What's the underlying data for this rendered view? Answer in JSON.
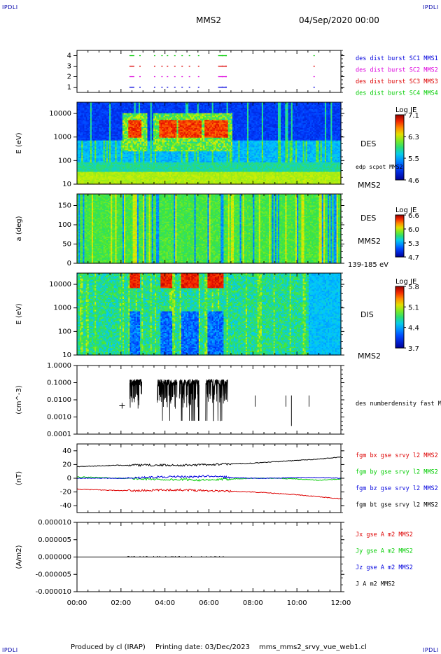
{
  "header": {
    "ipdli": "IPDLI",
    "title": "MMS2",
    "date": "04/Sep/2020 00:00"
  },
  "footer": {
    "produced_by": "Produced by cl (IRAP)",
    "printing_date": "Printing date: 03/Dec/2023",
    "script_name": "mms_mms2_srvy_vue_web1.cl"
  },
  "colors": {
    "red": "#dd0000",
    "green": "#00cc00",
    "blue": "#0000dd",
    "magenta": "#dd00dd",
    "black": "#000000"
  },
  "chart_data": [
    {
      "id": "burst",
      "type": "scatter",
      "ylabel": "",
      "yticks": [
        "1",
        "2",
        "3",
        "4"
      ],
      "ylim": [
        0.5,
        4.5
      ],
      "series": [
        {
          "name": "des dist burst SC1 MMS1",
          "color": "#0000dd",
          "y": 1,
          "x": [
            "02:23",
            "02:50",
            "03:30",
            "03:50",
            "04:05",
            "04:25",
            "04:45",
            "05:05",
            "05:30",
            "06:25",
            "06:35",
            "06:45",
            "10:45"
          ]
        },
        {
          "name": "des dist burst SC2 MMS2",
          "color": "#dd00dd",
          "y": 2,
          "x": [
            "02:23",
            "02:50",
            "03:30",
            "03:50",
            "04:05",
            "04:25",
            "04:45",
            "05:05",
            "05:30",
            "06:25",
            "06:35",
            "06:45",
            "10:45"
          ]
        },
        {
          "name": "des dist burst SC3 MMS3",
          "color": "#dd0000",
          "y": 3,
          "x": [
            "02:23",
            "02:50",
            "03:30",
            "03:50",
            "04:05",
            "04:25",
            "04:45",
            "05:05",
            "05:30",
            "06:25",
            "06:35",
            "06:45",
            "10:45"
          ]
        },
        {
          "name": "des dist burst SC4 MMS4",
          "color": "#00cc00",
          "y": 4,
          "x": [
            "02:23",
            "02:50",
            "03:30",
            "03:50",
            "04:05",
            "04:25",
            "04:45",
            "05:05",
            "05:30",
            "06:25",
            "06:35",
            "06:45",
            "10:45"
          ]
        }
      ]
    },
    {
      "id": "des_energy",
      "type": "heatmap",
      "ylabel": "E (eV)",
      "yscale": "log",
      "ylim": [
        10,
        30000
      ],
      "yticks": [
        "10",
        "100",
        "1000",
        "10000"
      ],
      "right_labels": [
        "DES",
        "MMS2",
        "edp scpot MMS2"
      ],
      "colorbar": {
        "title": "Log JE",
        "min": 4.6,
        "max": 7.1,
        "ticks": [
          "7.1",
          "6.3",
          "5.5",
          "4.6"
        ]
      },
      "hot_intervals_hours": [
        [
          2.3,
          2.9
        ],
        [
          3.7,
          4.5
        ],
        [
          4.6,
          5.6
        ],
        [
          5.8,
          6.8
        ]
      ]
    },
    {
      "id": "des_pitch",
      "type": "heatmap",
      "ylabel": "a (deg)",
      "ylim": [
        0,
        180
      ],
      "yticks": [
        "0",
        "50",
        "100",
        "150"
      ],
      "right_labels": [
        "DES",
        "MMS2",
        "139-185 eV"
      ],
      "colorbar": {
        "title": "Log JE",
        "min": 4.7,
        "max": 6.6,
        "ticks": [
          "6.6",
          "6.0",
          "5.3",
          "4.7"
        ]
      }
    },
    {
      "id": "dis_energy",
      "type": "heatmap",
      "ylabel": "E (eV)",
      "yscale": "log",
      "ylim": [
        10,
        30000
      ],
      "yticks": [
        "10",
        "100",
        "1000",
        "10000"
      ],
      "right_labels": [
        "DIS",
        "MMS2"
      ],
      "colorbar": {
        "title": "Log JE",
        "min": 3.7,
        "max": 5.8,
        "ticks": [
          "5.8",
          "5.1",
          "4.4",
          "3.7"
        ]
      },
      "hot_intervals_hours": [
        [
          2.4,
          2.8
        ],
        [
          3.8,
          4.3
        ],
        [
          4.7,
          5.5
        ],
        [
          5.9,
          6.6
        ]
      ]
    },
    {
      "id": "density",
      "type": "line",
      "ylabel": "(cm^-3)",
      "yscale": "log",
      "ylim": [
        0.0001,
        1.0
      ],
      "yticks": [
        "0.0001",
        "0.0010",
        "0.0100",
        "0.1000",
        "1.0000"
      ],
      "series": [
        {
          "name": "des numberdensity fast M",
          "color": "#000000"
        }
      ],
      "plus_marker": {
        "x_hours": 2.05,
        "y": 0.0045
      },
      "intervals_hours": [
        [
          2.4,
          2.95
        ],
        [
          3.65,
          4.55
        ],
        [
          4.65,
          5.55
        ],
        [
          5.85,
          6.85
        ]
      ],
      "isolated_hours": [
        8.1,
        9.5,
        9.75,
        10.55
      ]
    },
    {
      "id": "magnetic_field",
      "type": "line",
      "ylabel": "(nT)",
      "ylim": [
        -50,
        50
      ],
      "yticks": [
        "-40",
        "-20",
        "0",
        "20",
        "40"
      ],
      "series": [
        {
          "name": "fgm bx gse srvy l2 MMS2",
          "color": "#dd0000",
          "x": [
            0,
            1,
            2,
            3,
            4,
            5,
            6,
            7,
            8,
            9,
            10,
            11,
            12
          ],
          "values": [
            -16,
            -17,
            -18,
            -18,
            -17,
            -17,
            -18,
            -19,
            -20,
            -22,
            -24,
            -27,
            -30
          ]
        },
        {
          "name": "fgm by gse srvy l2 MMS2",
          "color": "#00cc00",
          "x": [
            0,
            1,
            2,
            3,
            4,
            5,
            6,
            7,
            8,
            9,
            10,
            11,
            12
          ],
          "values": [
            2,
            1,
            0,
            -1,
            -2,
            -2,
            -3,
            -1,
            0,
            0,
            -1,
            -3,
            -1
          ]
        },
        {
          "name": "fgm bz gse srvy l2 MMS2",
          "color": "#0000dd",
          "x": [
            0,
            1,
            2,
            3,
            4,
            5,
            6,
            7,
            8,
            9,
            10,
            11,
            12
          ],
          "values": [
            0,
            0,
            0,
            1,
            2,
            2,
            3,
            1,
            0,
            0,
            1,
            1,
            0
          ]
        },
        {
          "name": "fgm bt gse srvy l2 MMS2",
          "color": "#000000",
          "x": [
            0,
            1,
            2,
            3,
            4,
            5,
            6,
            7,
            8,
            9,
            10,
            11,
            12
          ],
          "values": [
            17,
            18,
            19,
            19,
            19,
            19,
            20,
            21,
            22,
            24,
            26,
            28,
            31
          ]
        }
      ]
    },
    {
      "id": "current_density",
      "type": "line",
      "ylabel": "(A/m2)",
      "ylim": [
        -1e-05,
        1e-05
      ],
      "yticks": [
        "-0.000010",
        "-0.000005",
        "0.000000",
        "0.000005",
        "0.000010"
      ],
      "series": [
        {
          "name": "Jx gse A m2 MMS2",
          "color": "#dd0000"
        },
        {
          "name": "Jy gse A m2 MMS2",
          "color": "#00cc00"
        },
        {
          "name": "Jz gse A m2 MMS2",
          "color": "#0000dd"
        },
        {
          "name": "J A m2 MMS2",
          "color": "#000000"
        }
      ],
      "x": [
        0,
        2,
        4,
        6,
        8,
        10,
        12
      ],
      "values": [
        0,
        0,
        0,
        0,
        0,
        0,
        0
      ]
    }
  ],
  "time_axis": {
    "ticks": [
      "00:00",
      "02:00",
      "04:00",
      "06:00",
      "08:00",
      "10:00",
      "12:00"
    ],
    "xlim_hours": [
      0,
      12
    ]
  }
}
